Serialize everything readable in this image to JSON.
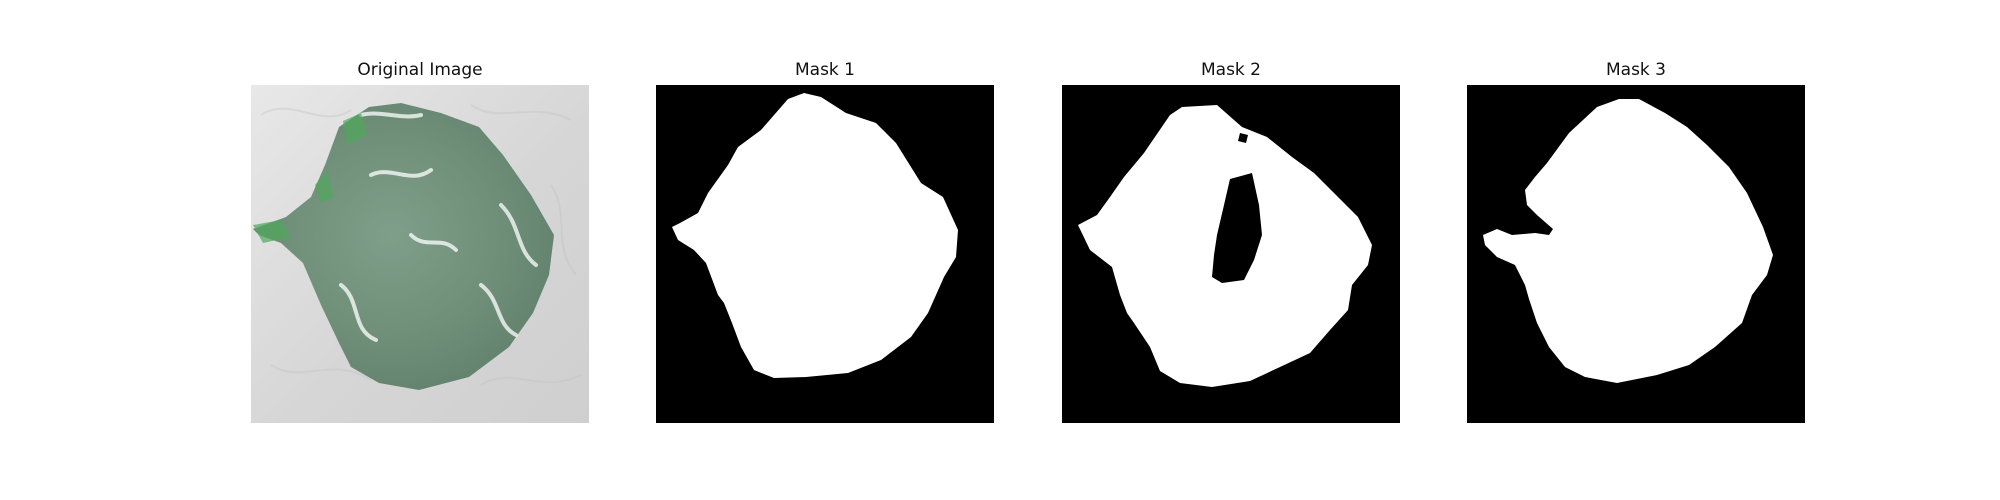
{
  "figure": {
    "panels": [
      {
        "title": "Original Image"
      },
      {
        "title": "Mask 1"
      },
      {
        "title": "Mask 2"
      },
      {
        "title": "Mask 3"
      }
    ]
  },
  "colors": {
    "background": "#ffffff",
    "mask_background": "#000000",
    "mask_foreground": "#ffffff",
    "lesion_green": "#6f8f79",
    "skin_gray": "#d6d6d6"
  }
}
